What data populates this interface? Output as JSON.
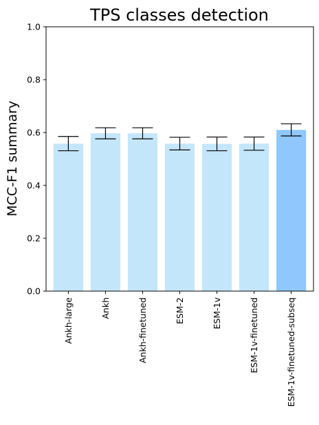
{
  "chart_data": {
    "type": "bar",
    "title": "TPS classes detection",
    "xlabel": "",
    "ylabel": "MCC-F1 summary",
    "ylim": [
      0,
      1.0
    ],
    "yticks": [
      "0.0",
      "0.2",
      "0.4",
      "0.6",
      "0.8",
      "1.0"
    ],
    "grid": false,
    "categories": [
      "Ankh-large",
      "Ankh",
      "Ankh-finetuned",
      "ESM-2",
      "ESM-1v",
      "ESM-1v-finetuned",
      "ESM-1v-finetuned-subseq"
    ],
    "values": [
      0.558,
      0.597,
      0.597,
      0.558,
      0.557,
      0.558,
      0.61
    ],
    "errors": [
      0.027,
      0.021,
      0.021,
      0.024,
      0.026,
      0.025,
      0.023
    ],
    "colors": [
      "#c4e6fb",
      "#c4e6fb",
      "#c4e6fb",
      "#c4e6fb",
      "#c4e6fb",
      "#c4e6fb",
      "#90c8fd"
    ]
  }
}
